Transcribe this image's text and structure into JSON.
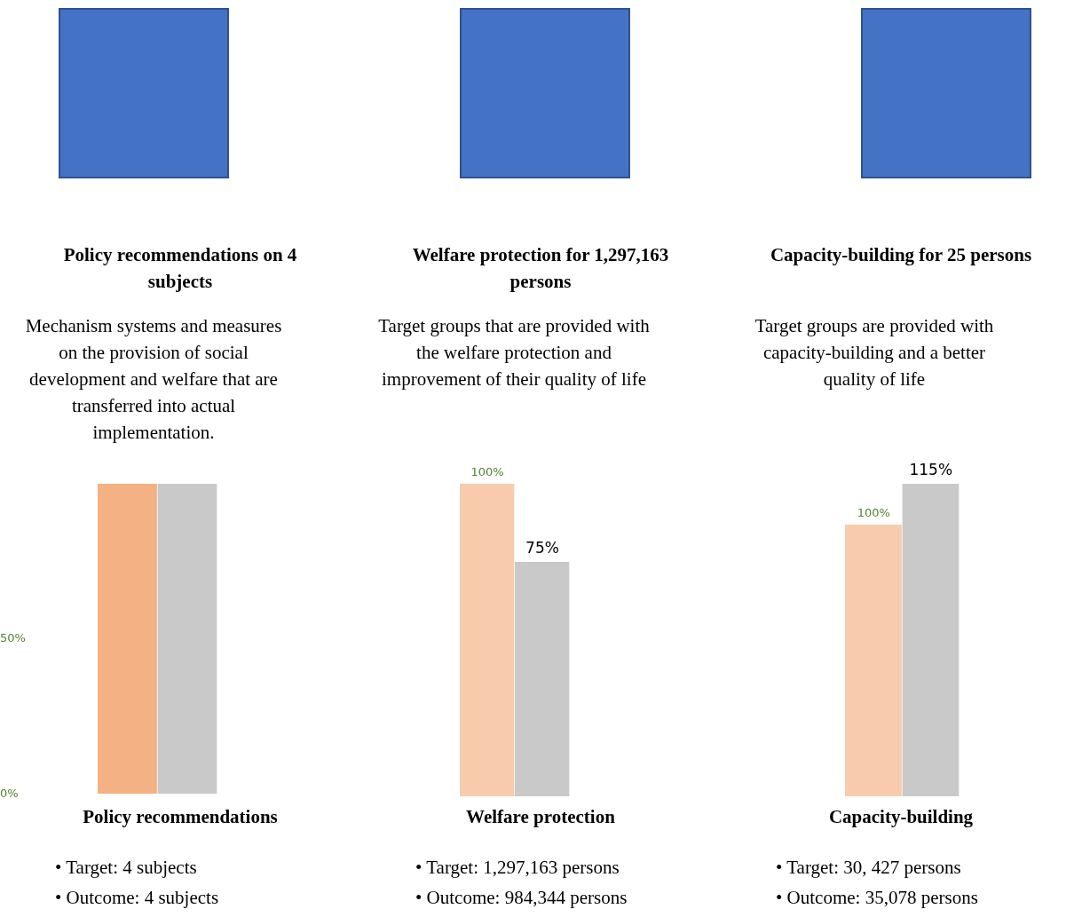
{
  "chart_data": [
    {
      "type": "bar",
      "title": "Policy recommendations on 4 subjects",
      "subtitle": "Mechanism systems and measures on the provision of social development and welfare that are transferred into actual implementation.",
      "xlabel": "Policy recommendations",
      "categories": [
        null,
        null
      ],
      "values": [
        100,
        100
      ],
      "colors": [
        "#f4b183",
        "#c9c9c9"
      ],
      "ylim": [
        0,
        100
      ],
      "yticks": [
        {
          "value": 0,
          "label": "0%"
        },
        {
          "value": 50,
          "label": "50%"
        }
      ],
      "annotations": [
        "• Target: 4 subjects",
        "• Outcome: 4 subjects"
      ]
    },
    {
      "type": "bar",
      "title": "Welfare protection for 1,297,163 persons",
      "subtitle": "Target groups that are provided with the welfare protection and improvement of their quality of life",
      "xlabel": "Welfare protection",
      "categories": [
        null,
        null
      ],
      "values": [
        100,
        75
      ],
      "colors": [
        "#f8cbad",
        "#c9c9c9"
      ],
      "value_labels": [
        "100%",
        "75%"
      ],
      "annotations": [
        "• Target: 1,297,163 persons",
        "• Outcome: 984,344 persons"
      ]
    },
    {
      "type": "bar",
      "title": "Capacity-building for 25 persons",
      "subtitle": "Target groups are provided with capacity-building and a better quality of life",
      "xlabel": "Capacity-building",
      "categories": [
        null,
        null
      ],
      "values": [
        100,
        115
      ],
      "colors": [
        "#f8cbad",
        "#c9c9c9"
      ],
      "value_labels": [
        "100%",
        "115%"
      ],
      "annotations": [
        "• Target: 30, 427 persons",
        "• Outcome: 35,078 persons"
      ]
    }
  ]
}
